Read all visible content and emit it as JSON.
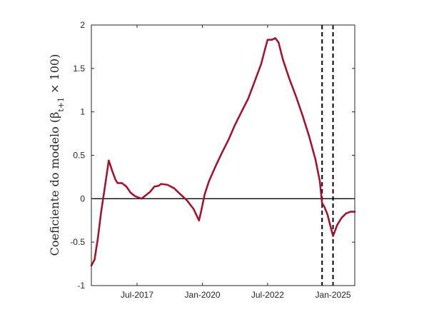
{
  "chart_data": {
    "type": "line",
    "ylabel": "Coeficiente do modelo (β_{t+1} × 100)",
    "ylim": [
      -1,
      2
    ],
    "xlim": [
      "2015-10-01",
      "2025-11-01"
    ],
    "yticks": [
      -1,
      -0.5,
      0,
      0.5,
      1,
      1.5,
      2
    ],
    "ytick_labels": [
      "-1",
      "-0.5",
      "0",
      "0.5",
      "1",
      "1.5",
      "2"
    ],
    "xticks": [
      "2017-07-01",
      "2020-01-01",
      "2022-07-01",
      "2025-01-01"
    ],
    "xtick_labels": [
      "Jul-2017",
      "Jan-2020",
      "Jul-2022",
      "Jan-2025"
    ],
    "grid": false,
    "legend": "none",
    "line_color": "#A2142F",
    "zero_line": true,
    "vertical_lines": [
      "2024-08-01",
      "2025-01-01"
    ],
    "series": [
      {
        "points": [
          [
            "2015-10-01",
            -0.77
          ],
          [
            "2015-11-15",
            -0.7
          ],
          [
            "2016-01-01",
            -0.45
          ],
          [
            "2016-02-15",
            -0.15
          ],
          [
            "2016-04-01",
            0.1
          ],
          [
            "2016-05-10",
            0.32
          ],
          [
            "2016-06-01",
            0.44
          ],
          [
            "2016-07-15",
            0.33
          ],
          [
            "2016-09-01",
            0.22
          ],
          [
            "2016-10-01",
            0.18
          ],
          [
            "2016-12-01",
            0.18
          ],
          [
            "2017-02-01",
            0.14
          ],
          [
            "2017-04-01",
            0.07
          ],
          [
            "2017-06-01",
            0.03
          ],
          [
            "2017-08-01",
            0.01
          ],
          [
            "2017-09-01",
            0.0
          ],
          [
            "2017-11-01",
            0.04
          ],
          [
            "2018-01-01",
            0.08
          ],
          [
            "2018-03-01",
            0.14
          ],
          [
            "2018-05-01",
            0.15
          ],
          [
            "2018-06-01",
            0.17
          ],
          [
            "2018-09-01",
            0.16
          ],
          [
            "2018-12-01",
            0.12
          ],
          [
            "2019-03-01",
            0.05
          ],
          [
            "2019-06-01",
            -0.02
          ],
          [
            "2019-09-01",
            -0.12
          ],
          [
            "2019-11-15",
            -0.25
          ],
          [
            "2019-12-15",
            -0.14
          ],
          [
            "2020-02-01",
            0.05
          ],
          [
            "2020-04-01",
            0.2
          ],
          [
            "2020-07-01",
            0.37
          ],
          [
            "2020-10-01",
            0.53
          ],
          [
            "2021-01-01",
            0.68
          ],
          [
            "2021-04-01",
            0.85
          ],
          [
            "2021-07-01",
            1.0
          ],
          [
            "2021-10-01",
            1.15
          ],
          [
            "2022-01-01",
            1.35
          ],
          [
            "2022-04-01",
            1.55
          ],
          [
            "2022-06-01",
            1.74
          ],
          [
            "2022-07-01",
            1.83
          ],
          [
            "2022-09-01",
            1.83
          ],
          [
            "2022-10-15",
            1.85
          ],
          [
            "2022-12-01",
            1.8
          ],
          [
            "2023-02-01",
            1.6
          ],
          [
            "2023-05-01",
            1.38
          ],
          [
            "2023-08-01",
            1.18
          ],
          [
            "2023-11-01",
            0.96
          ],
          [
            "2024-02-01",
            0.72
          ],
          [
            "2024-05-01",
            0.45
          ],
          [
            "2024-07-01",
            0.2
          ],
          [
            "2024-08-01",
            -0.05
          ],
          [
            "2024-09-01",
            -0.09
          ],
          [
            "2024-10-15",
            -0.18
          ],
          [
            "2024-12-01",
            -0.33
          ],
          [
            "2025-01-01",
            -0.43
          ],
          [
            "2025-03-01",
            -0.3
          ],
          [
            "2025-05-01",
            -0.22
          ],
          [
            "2025-07-01",
            -0.17
          ],
          [
            "2025-09-01",
            -0.15
          ],
          [
            "2025-11-01",
            -0.15
          ]
        ]
      }
    ]
  }
}
